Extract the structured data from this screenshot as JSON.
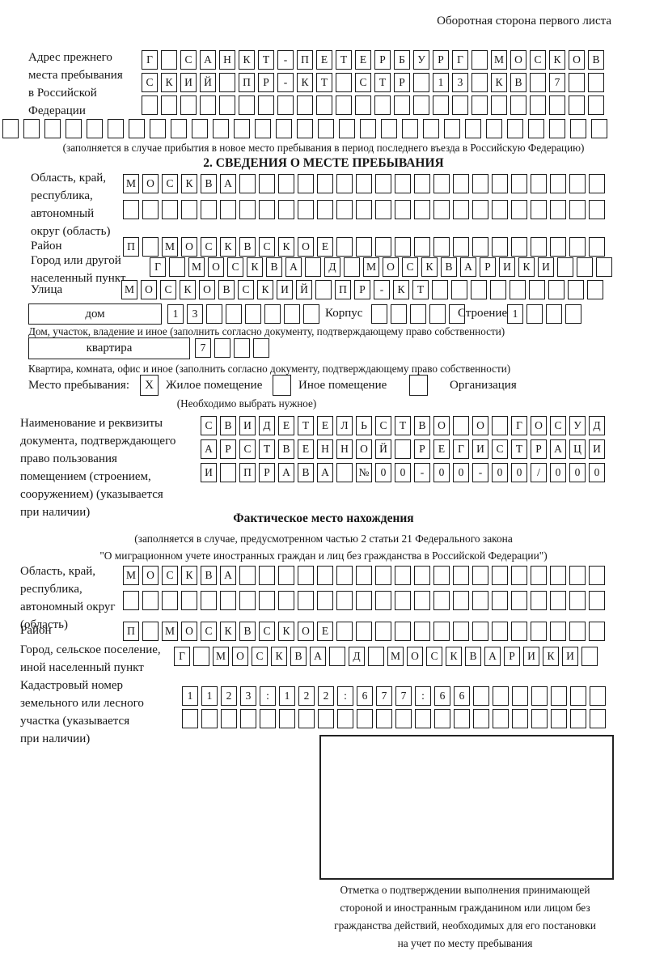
{
  "colors": {
    "ink": "#1c1c1c",
    "paper": "#ffffff"
  },
  "header": {
    "note": "Оборотная сторона первого листа"
  },
  "previous_address": {
    "label": "Адрес прежнего\nместа пребывания\nв Российской\nФедерации",
    "row1": [
      "Г",
      "",
      "С",
      "А",
      "Н",
      "К",
      "Т",
      "-",
      "П",
      "Е",
      "Т",
      "Е",
      "Р",
      "Б",
      "У",
      "Р",
      "Г",
      "",
      "М",
      "О",
      "С",
      "К",
      "О",
      "В"
    ],
    "row2": [
      "С",
      "К",
      "И",
      "Й",
      "",
      "П",
      "Р",
      "-",
      "К",
      "Т",
      "",
      "С",
      "Т",
      "Р",
      "",
      "1",
      "3",
      "",
      "К",
      "В",
      "",
      "7",
      "",
      ""
    ],
    "row3": [
      "",
      "",
      "",
      "",
      "",
      "",
      "",
      "",
      "",
      "",
      "",
      "",
      "",
      "",
      "",
      "",
      "",
      "",
      "",
      "",
      "",
      "",
      "",
      ""
    ],
    "row4": [
      "",
      "",
      "",
      "",
      "",
      "",
      "",
      "",
      "",
      "",
      "",
      "",
      "",
      "",
      "",
      "",
      "",
      "",
      "",
      "",
      "",
      "",
      "",
      "",
      "",
      "",
      "",
      "",
      ""
    ],
    "note": "(заполняется в случае прибытия в новое место пребывания в период последнего въезда в Российскую Федерацию)"
  },
  "section2": {
    "title": "2. СВЕДЕНИЯ О МЕСТЕ ПРЕБЫВАНИЯ",
    "oblast": {
      "label": "Область, край,\nреспублика,\nавтономный\nокруг (область)",
      "row1": [
        "М",
        "О",
        "С",
        "К",
        "В",
        "А",
        "",
        "",
        "",
        "",
        "",
        "",
        "",
        "",
        "",
        "",
        "",
        "",
        "",
        "",
        "",
        "",
        "",
        "",
        ""
      ],
      "row2": [
        "",
        "",
        "",
        "",
        "",
        "",
        "",
        "",
        "",
        "",
        "",
        "",
        "",
        "",
        "",
        "",
        "",
        "",
        "",
        "",
        "",
        "",
        "",
        "",
        ""
      ]
    },
    "raion": {
      "label": "Район",
      "row": [
        "П",
        "",
        "М",
        "О",
        "С",
        "К",
        "В",
        "С",
        "К",
        "О",
        "Е",
        "",
        "",
        "",
        "",
        "",
        "",
        "",
        "",
        "",
        "",
        "",
        "",
        "",
        ""
      ]
    },
    "gorod": {
      "label": "Город или другой\nнаселенный пункт",
      "row": [
        "Г",
        "",
        "М",
        "О",
        "С",
        "К",
        "В",
        "А",
        "",
        "Д",
        "",
        "М",
        "О",
        "С",
        "К",
        "В",
        "А",
        "Р",
        "И",
        "К",
        "И",
        "",
        "",
        ""
      ]
    },
    "ulitsa": {
      "label": "Улица",
      "row": [
        "М",
        "О",
        "С",
        "К",
        "О",
        "В",
        "С",
        "К",
        "И",
        "Й",
        "",
        "П",
        "Р",
        "-",
        "К",
        "Т",
        "",
        "",
        "",
        "",
        "",
        "",
        "",
        "",
        ""
      ]
    },
    "dom": {
      "box_label": "дом",
      "cells": [
        "1",
        "3",
        "",
        "",
        "",
        "",
        "",
        ""
      ],
      "korpus_label": "Корпус",
      "korpus_cells": [
        "",
        "",
        "",
        "",
        ""
      ],
      "stroenie_label": "Строение",
      "stroenie_cells": [
        "1",
        "",
        "",
        ""
      ],
      "note": "Дом, участок, владение и иное (заполнить согласно документу, подтверждающему право собственности)"
    },
    "kvartira": {
      "box_label": "квартира",
      "cells": [
        "7",
        "",
        "",
        ""
      ],
      "note": "Квартира, комната, офис и иное (заполнить согласно документу, подтверждающему право собственности)"
    },
    "mesto": {
      "label": "Место пребывания:",
      "opt1": {
        "check": "X",
        "label": "Жилое помещение"
      },
      "opt2": {
        "check": "",
        "label": "Иное помещение"
      },
      "opt3": {
        "check": "",
        "label": "Организация"
      },
      "note": "(Необходимо выбрать нужное)"
    },
    "document": {
      "label": "Наименование и реквизиты\nдокумента, подтверждающего\nправо пользования\nпомещением (строением,\nсооружением) (указывается\nпри наличии)",
      "row1": [
        "С",
        "В",
        "И",
        "Д",
        "Е",
        "Т",
        "Е",
        "Л",
        "Ь",
        "С",
        "Т",
        "В",
        "О",
        "",
        "О",
        "",
        "Г",
        "О",
        "С",
        "У",
        "Д"
      ],
      "row2": [
        "А",
        "Р",
        "С",
        "Т",
        "В",
        "Е",
        "Н",
        "Н",
        "О",
        "Й",
        "",
        "Р",
        "Е",
        "Г",
        "И",
        "С",
        "Т",
        "Р",
        "А",
        "Ц",
        "И"
      ],
      "row3": [
        "И",
        "",
        "П",
        "Р",
        "А",
        "В",
        "А",
        "",
        "№",
        "0",
        "0",
        "-",
        "0",
        "0",
        "-",
        "0",
        "0",
        "/",
        "0",
        "0",
        "0"
      ]
    }
  },
  "factual": {
    "title": "Фактическое место нахождения",
    "subtitle": "(заполняется в случае, предусмотренном частью 2 статьи 21 Федерального закона\n\"О миграционном учете иностранных граждан и лиц без гражданства в Российской Федерации\")",
    "oblast": {
      "label": "Область, край,\nреспублика,\nавтономный округ\n(область)",
      "row1": [
        "М",
        "О",
        "С",
        "К",
        "В",
        "А",
        "",
        "",
        "",
        "",
        "",
        "",
        "",
        "",
        "",
        "",
        "",
        "",
        "",
        "",
        "",
        "",
        "",
        "",
        ""
      ],
      "row2": [
        "",
        "",
        "",
        "",
        "",
        "",
        "",
        "",
        "",
        "",
        "",
        "",
        "",
        "",
        "",
        "",
        "",
        "",
        "",
        "",
        "",
        "",
        "",
        "",
        ""
      ]
    },
    "raion": {
      "label": "Район",
      "row": [
        "П",
        "",
        "М",
        "О",
        "С",
        "К",
        "В",
        "С",
        "К",
        "О",
        "Е",
        "",
        "",
        "",
        "",
        "",
        "",
        "",
        "",
        "",
        "",
        "",
        "",
        "",
        ""
      ]
    },
    "gorod": {
      "label": "Город, сельское поселение,\nиной населенный пункт",
      "row": [
        "Г",
        "",
        "М",
        "О",
        "С",
        "К",
        "В",
        "А",
        "",
        "Д",
        "",
        "М",
        "О",
        "С",
        "К",
        "В",
        "А",
        "Р",
        "И",
        "К",
        "И",
        ""
      ]
    },
    "kadastr": {
      "label": "Кадастровый номер\nземельного или лесного\nучастка (указывается\nпри наличии)",
      "row1": [
        "1",
        "1",
        "2",
        "3",
        ":",
        "1",
        "2",
        "2",
        ":",
        "6",
        "7",
        "7",
        ":",
        "6",
        "6",
        "",
        "",
        "",
        "",
        "",
        "",
        ""
      ],
      "row2": [
        "",
        "",
        "",
        "",
        "",
        "",
        "",
        "",
        "",
        "",
        "",
        "",
        "",
        "",
        "",
        "",
        "",
        "",
        "",
        "",
        "",
        ""
      ]
    }
  },
  "stamp": {
    "note": "Отметка о подтверждении выполнения принимающей\nстороной и иностранным гражданином или лицом без\nгражданства действий, необходимых для его постановки\nна учет по месту пребывания"
  }
}
